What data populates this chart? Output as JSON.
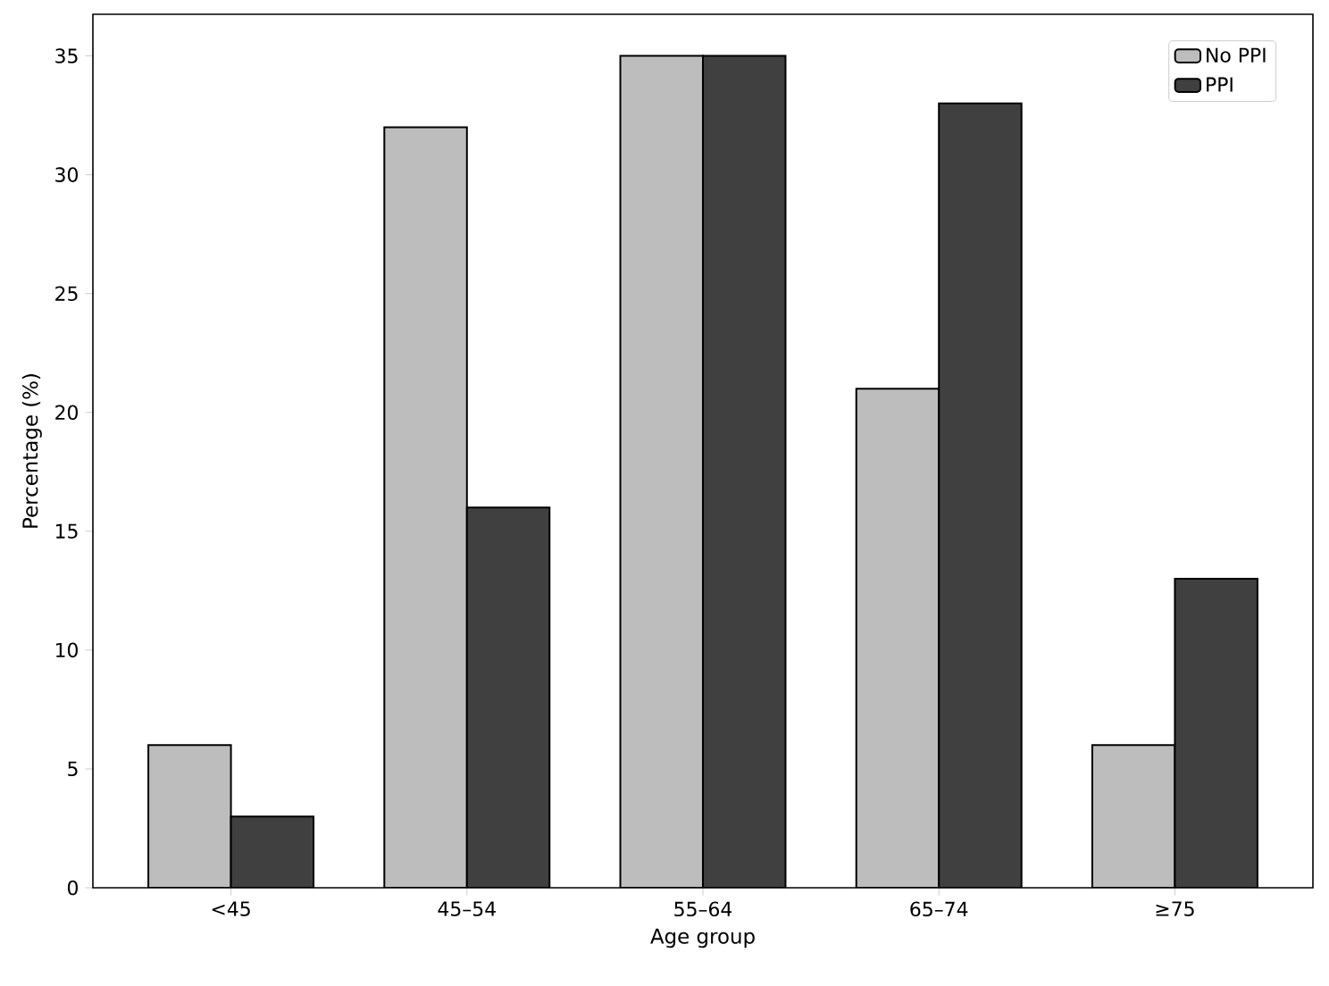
{
  "chart_data": {
    "type": "bar",
    "xlabel": "Age group",
    "ylabel": "Percentage (%)",
    "categories": [
      "<45",
      "45–54",
      "55–64",
      "65–74",
      "≥75"
    ],
    "series": [
      {
        "name": "No PPI",
        "color": "#bdbdbd",
        "values": [
          6,
          32,
          35,
          21,
          6
        ]
      },
      {
        "name": "PPI",
        "color": "#404040",
        "values": [
          3,
          16,
          35,
          33,
          13
        ]
      }
    ],
    "ylim": [
      0,
      36.75
    ],
    "yticks": [
      0,
      5,
      10,
      15,
      20,
      25,
      30,
      35
    ],
    "legend": "top right"
  }
}
